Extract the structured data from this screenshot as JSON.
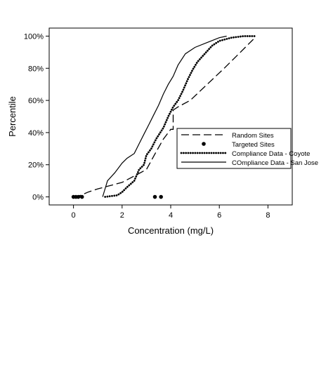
{
  "chart_data": {
    "type": "line",
    "title": "",
    "xlabel": "Concentration (mg/L)",
    "ylabel": "Percentile",
    "xlim": [
      -1,
      9
    ],
    "ylim": [
      -0.05,
      1.05
    ],
    "x_ticks": [
      0,
      2,
      4,
      6,
      8
    ],
    "x_tick_labels": [
      "0",
      "2",
      "4",
      "6",
      "8"
    ],
    "y_ticks": [
      0,
      0.2,
      0.4,
      0.6,
      0.8,
      1.0
    ],
    "y_tick_labels": [
      "0%",
      "20%",
      "40%",
      "60%",
      "80%",
      "100%"
    ],
    "grid": false,
    "legend_position": "center-right",
    "series": [
      {
        "name": "Random Sites",
        "style": "long-dash",
        "color": "#000000",
        "x": [
          0.0,
          0.3,
          0.6,
          1.0,
          1.5,
          2.0,
          2.5,
          3.0,
          3.4,
          3.7,
          4.0,
          4.1,
          4.1,
          4.3,
          4.8,
          5.5,
          6.2,
          6.8,
          7.4
        ],
        "y": [
          0.0,
          0.01,
          0.03,
          0.05,
          0.07,
          0.09,
          0.13,
          0.17,
          0.28,
          0.36,
          0.42,
          0.42,
          0.54,
          0.56,
          0.6,
          0.7,
          0.8,
          0.89,
          0.98
        ]
      },
      {
        "name": "Targeted Sites",
        "style": "dots",
        "color": "#000000",
        "x": [
          0.0,
          0.1,
          0.2,
          0.35,
          3.35,
          3.6
        ],
        "y": [
          0.0,
          0.0,
          0.0,
          0.0,
          0.0,
          0.0
        ]
      },
      {
        "name": "Compliance Data - Coyote",
        "style": "dotted",
        "color": "#000000",
        "x": [
          1.3,
          1.8,
          2.0,
          2.2,
          2.5,
          2.7,
          2.9,
          3.0,
          3.2,
          3.4,
          3.7,
          3.9,
          4.1,
          4.3,
          4.5,
          4.7,
          4.9,
          5.1,
          5.4,
          5.7,
          6.0,
          6.5,
          7.0,
          7.5
        ],
        "y": [
          0.0,
          0.01,
          0.03,
          0.06,
          0.1,
          0.17,
          0.2,
          0.26,
          0.3,
          0.36,
          0.43,
          0.5,
          0.56,
          0.6,
          0.66,
          0.73,
          0.79,
          0.84,
          0.89,
          0.94,
          0.97,
          0.99,
          1.0,
          1.0
        ]
      },
      {
        "name": "COmpliance Data - San Jose",
        "style": "solid",
        "color": "#000000",
        "x": [
          1.2,
          1.4,
          1.7,
          2.0,
          2.2,
          2.5,
          2.7,
          2.9,
          3.1,
          3.3,
          3.5,
          3.7,
          3.9,
          4.1,
          4.3,
          4.6,
          5.0,
          5.5,
          6.0,
          6.3
        ],
        "y": [
          0.0,
          0.1,
          0.15,
          0.21,
          0.24,
          0.27,
          0.33,
          0.39,
          0.45,
          0.51,
          0.57,
          0.64,
          0.7,
          0.75,
          0.82,
          0.89,
          0.93,
          0.96,
          0.99,
          1.0
        ]
      }
    ]
  }
}
